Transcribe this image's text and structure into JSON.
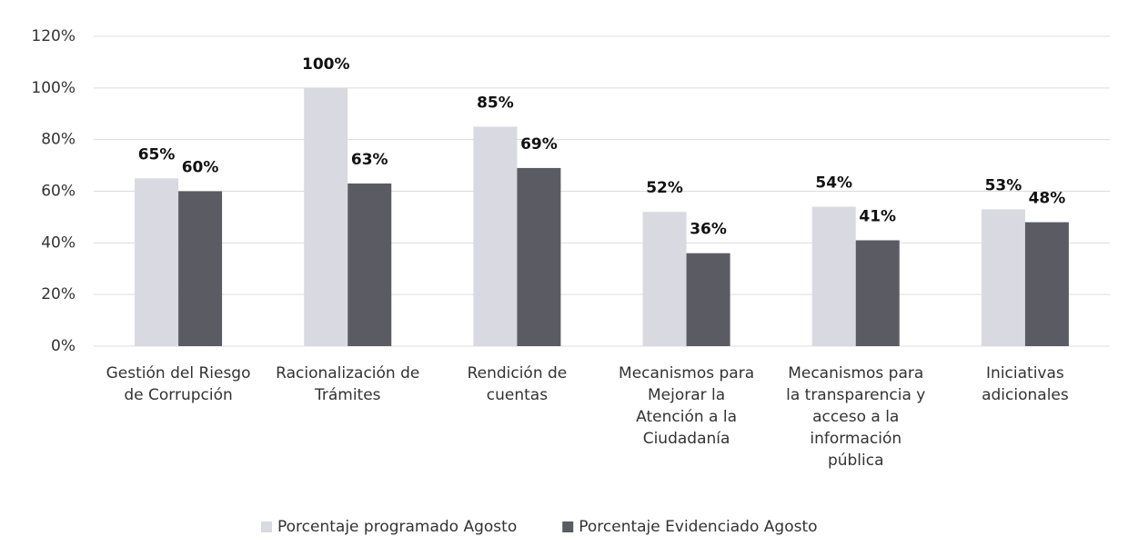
{
  "chart_data": {
    "type": "bar",
    "categories": [
      [
        "Gestión del Riesgo",
        "de Corrupción"
      ],
      [
        "Racionalización de",
        "Trámites"
      ],
      [
        "Rendición de",
        "cuentas"
      ],
      [
        "Mecanismos para",
        "Mejorar la",
        "Atención a la",
        "Ciudadanía"
      ],
      [
        "Mecanismos para",
        "la transparencia y",
        "acceso a la",
        "información",
        "pública"
      ],
      [
        "Iniciativas",
        "adicionales"
      ]
    ],
    "series": [
      {
        "name": "Porcentaje programado Agosto",
        "color": "#d9d9e1",
        "values": [
          65,
          100,
          85,
          52,
          54,
          53
        ],
        "value_labels": [
          "65%",
          "100%",
          "85%",
          "52%",
          "54%",
          "53%"
        ]
      },
      {
        "name": "Porcentaje Evidenciado Agosto",
        "color": "#5a5b63",
        "values": [
          60,
          63,
          69,
          36,
          41,
          48
        ],
        "value_labels": [
          "60%",
          "63%",
          "69%",
          "36%",
          "41%",
          "48%"
        ]
      }
    ],
    "ylim": [
      0,
      120
    ],
    "yticks": [
      {
        "value": 0,
        "label": "0%"
      },
      {
        "value": 20,
        "label": "20%"
      },
      {
        "value": 40,
        "label": "40%"
      },
      {
        "value": 60,
        "label": "60%"
      },
      {
        "value": 80,
        "label": "80%"
      },
      {
        "value": 100,
        "label": "100%"
      },
      {
        "value": 120,
        "label": "120%"
      }
    ],
    "grid": true,
    "legend": "bottom"
  }
}
